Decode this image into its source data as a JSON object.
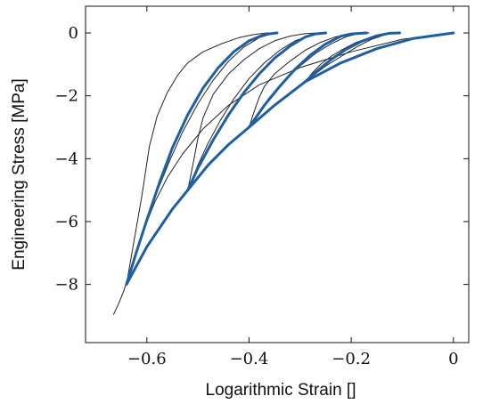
{
  "chart_data": {
    "type": "line",
    "title": "",
    "xlabel": "Logarithmic Strain []",
    "ylabel": "Engineering Stress [MPa]",
    "xlim": [
      -0.72,
      0.03
    ],
    "ylim": [
      -9.85,
      0.85
    ],
    "xticks": [
      -0.6,
      -0.4,
      -0.2,
      0
    ],
    "xtick_labels": [
      "−0.6",
      "−0.4",
      "−0.2",
      "0"
    ],
    "yticks": [
      0,
      -2,
      -4,
      -6,
      -8
    ],
    "ytick_labels": [
      "0",
      "−2",
      "−4",
      "−6",
      "−8"
    ],
    "grid": false,
    "legend": "none",
    "colors": {
      "fitted": "#1f5fa0",
      "measured": "#222222"
    },
    "series": [
      {
        "style": "measured",
        "x": [
          -0.665,
          -0.655,
          -0.645,
          -0.625,
          -0.608,
          -0.585,
          -0.56,
          -0.53,
          -0.49,
          -0.44,
          -0.38,
          -0.3,
          -0.2,
          -0.1,
          0.0
        ],
        "y": [
          -8.95,
          -8.6,
          -8.2,
          -7.15,
          -6.35,
          -5.4,
          -4.6,
          -3.85,
          -3.05,
          -2.3,
          -1.65,
          -1.1,
          -0.6,
          -0.2,
          0.0
        ]
      },
      {
        "style": "measured",
        "x": [
          -0.64,
          -0.625,
          -0.61,
          -0.595,
          -0.58,
          -0.56,
          -0.54,
          -0.52,
          -0.49,
          -0.455,
          -0.42,
          -0.39,
          -0.365,
          -0.345
        ],
        "y": [
          -8.0,
          -6.6,
          -5.2,
          -3.6,
          -2.65,
          -1.9,
          -1.35,
          -0.95,
          -0.6,
          -0.35,
          -0.15,
          -0.05,
          0.0,
          0.0
        ]
      },
      {
        "style": "measured",
        "x": [
          -0.64,
          -0.62,
          -0.6,
          -0.58,
          -0.555,
          -0.53,
          -0.5,
          -0.47,
          -0.44,
          -0.41,
          -0.38,
          -0.35
        ],
        "y": [
          -8.0,
          -7.0,
          -6.0,
          -5.05,
          -4.05,
          -3.15,
          -2.25,
          -1.5,
          -0.9,
          -0.45,
          -0.15,
          0.0
        ]
      },
      {
        "style": "measured",
        "x": [
          -0.52,
          -0.51,
          -0.5,
          -0.49,
          -0.47,
          -0.44,
          -0.41,
          -0.38,
          -0.35,
          -0.32,
          -0.29,
          -0.265,
          -0.25
        ],
        "y": [
          -5.0,
          -4.2,
          -3.35,
          -2.7,
          -1.95,
          -1.3,
          -0.85,
          -0.5,
          -0.25,
          -0.1,
          -0.02,
          0.0,
          0.0
        ]
      },
      {
        "style": "measured",
        "x": [
          -0.52,
          -0.5,
          -0.48,
          -0.455,
          -0.43,
          -0.4,
          -0.37,
          -0.34,
          -0.31,
          -0.28,
          -0.255
        ],
        "y": [
          -5.0,
          -4.2,
          -3.5,
          -2.75,
          -2.1,
          -1.45,
          -0.95,
          -0.55,
          -0.25,
          -0.07,
          0.0
        ]
      },
      {
        "style": "measured",
        "x": [
          -0.4,
          -0.39,
          -0.38,
          -0.37,
          -0.35,
          -0.32,
          -0.29,
          -0.26,
          -0.23,
          -0.2,
          -0.175,
          -0.165
        ],
        "y": [
          -3.0,
          -2.5,
          -2.05,
          -1.7,
          -1.3,
          -0.9,
          -0.55,
          -0.3,
          -0.12,
          -0.03,
          0.0,
          0.0
        ]
      },
      {
        "style": "measured",
        "x": [
          -0.4,
          -0.38,
          -0.36,
          -0.33,
          -0.3,
          -0.27,
          -0.24,
          -0.21,
          -0.185,
          -0.17
        ],
        "y": [
          -3.0,
          -2.5,
          -2.05,
          -1.5,
          -1.05,
          -0.65,
          -0.35,
          -0.12,
          -0.02,
          0.0
        ]
      },
      {
        "style": "measured",
        "x": [
          -0.29,
          -0.275,
          -0.26,
          -0.24,
          -0.22,
          -0.19,
          -0.16,
          -0.14,
          -0.12,
          -0.105
        ],
        "y": [
          -1.55,
          -1.25,
          -1.0,
          -0.75,
          -0.55,
          -0.3,
          -0.12,
          -0.04,
          0.0,
          0.0
        ]
      },
      {
        "style": "measured",
        "x": [
          -0.29,
          -0.27,
          -0.25,
          -0.22,
          -0.19,
          -0.16,
          -0.13,
          -0.11
        ],
        "y": [
          -1.55,
          -1.3,
          -1.05,
          -0.75,
          -0.45,
          -0.2,
          -0.04,
          0.0
        ]
      },
      {
        "style": "fitted",
        "x": [
          -0.64,
          -0.6,
          -0.55,
          -0.52,
          -0.48,
          -0.44,
          -0.4,
          -0.35,
          -0.29,
          -0.22,
          -0.15,
          -0.08,
          0.0
        ],
        "y": [
          -8.0,
          -6.8,
          -5.6,
          -5.0,
          -4.2,
          -3.55,
          -3.0,
          -2.3,
          -1.55,
          -0.95,
          -0.5,
          -0.18,
          0.0
        ]
      },
      {
        "style": "fitted",
        "x": [
          -0.64,
          -0.62,
          -0.6,
          -0.575,
          -0.55,
          -0.52,
          -0.49,
          -0.46,
          -0.43,
          -0.4,
          -0.37,
          -0.345
        ],
        "y": [
          -8.0,
          -6.95,
          -5.95,
          -4.75,
          -3.65,
          -2.6,
          -1.75,
          -1.1,
          -0.6,
          -0.25,
          -0.05,
          0.0
        ]
      },
      {
        "style": "fitted",
        "x": [
          -0.52,
          -0.5,
          -0.47,
          -0.44,
          -0.41,
          -0.38,
          -0.35,
          -0.32,
          -0.29,
          -0.27,
          -0.25
        ],
        "y": [
          -5.0,
          -4.3,
          -3.4,
          -2.6,
          -1.9,
          -1.3,
          -0.8,
          -0.42,
          -0.13,
          -0.03,
          0.0
        ]
      },
      {
        "style": "fitted",
        "x": [
          -0.4,
          -0.37,
          -0.34,
          -0.31,
          -0.28,
          -0.25,
          -0.22,
          -0.2,
          -0.17
        ],
        "y": [
          -3.0,
          -2.3,
          -1.7,
          -1.15,
          -0.7,
          -0.35,
          -0.1,
          -0.03,
          0.0
        ]
      },
      {
        "style": "fitted",
        "x": [
          -0.29,
          -0.27,
          -0.24,
          -0.21,
          -0.18,
          -0.15,
          -0.125,
          -0.105
        ],
        "y": [
          -1.55,
          -1.25,
          -0.85,
          -0.52,
          -0.27,
          -0.09,
          -0.01,
          0.0
        ]
      }
    ]
  }
}
